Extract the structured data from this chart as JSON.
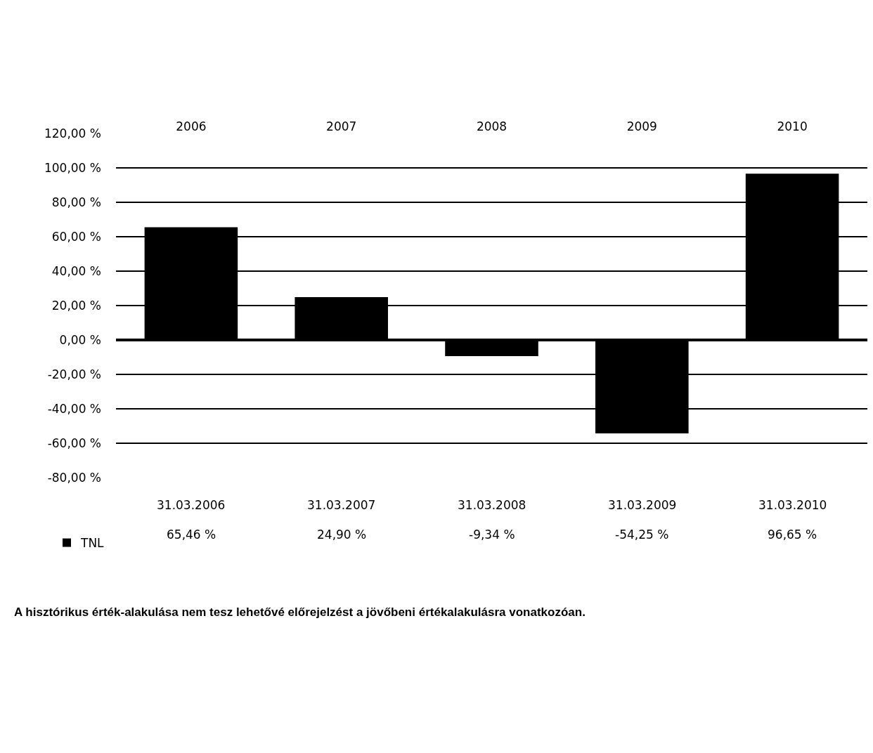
{
  "chart_data": {
    "type": "bar",
    "categories": [
      "2006",
      "2007",
      "2008",
      "2009",
      "2010"
    ],
    "series": [
      {
        "name": "TNL",
        "color": "#000000",
        "values": [
          65.46,
          24.9,
          -9.34,
          -54.25,
          96.65
        ],
        "value_labels": [
          "65,46 %",
          "24,90 %",
          "-9,34 %",
          "-54,25 %",
          "96,65 %"
        ]
      }
    ],
    "ylim": [
      -80,
      120
    ],
    "yticks": [
      {
        "value": -80,
        "label": "-80,00 %"
      },
      {
        "value": -60,
        "label": "-60,00 %"
      },
      {
        "value": -40,
        "label": "-40,00 %"
      },
      {
        "value": -20,
        "label": "-20,00 %"
      },
      {
        "value": 0,
        "label": "0,00 %"
      },
      {
        "value": 20,
        "label": "20,00 %"
      },
      {
        "value": 40,
        "label": "40,00 %"
      },
      {
        "value": 60,
        "label": "60,00 %"
      },
      {
        "value": 80,
        "label": "80,00 %"
      },
      {
        "value": 100,
        "label": "100,00 %"
      },
      {
        "value": 120,
        "label": "120,00 %"
      }
    ],
    "grid": "y",
    "legend": "bottom left",
    "annotations": [
      "31.03.2006",
      "31.03.2007",
      "31.03.2008",
      "31.03.2009",
      "31.03.2010",
      "A hisztórikus érték-alakulása nem tesz lehetővé előrejelzést a jövőbeni értékalakulásra vonatkozóan."
    ]
  }
}
